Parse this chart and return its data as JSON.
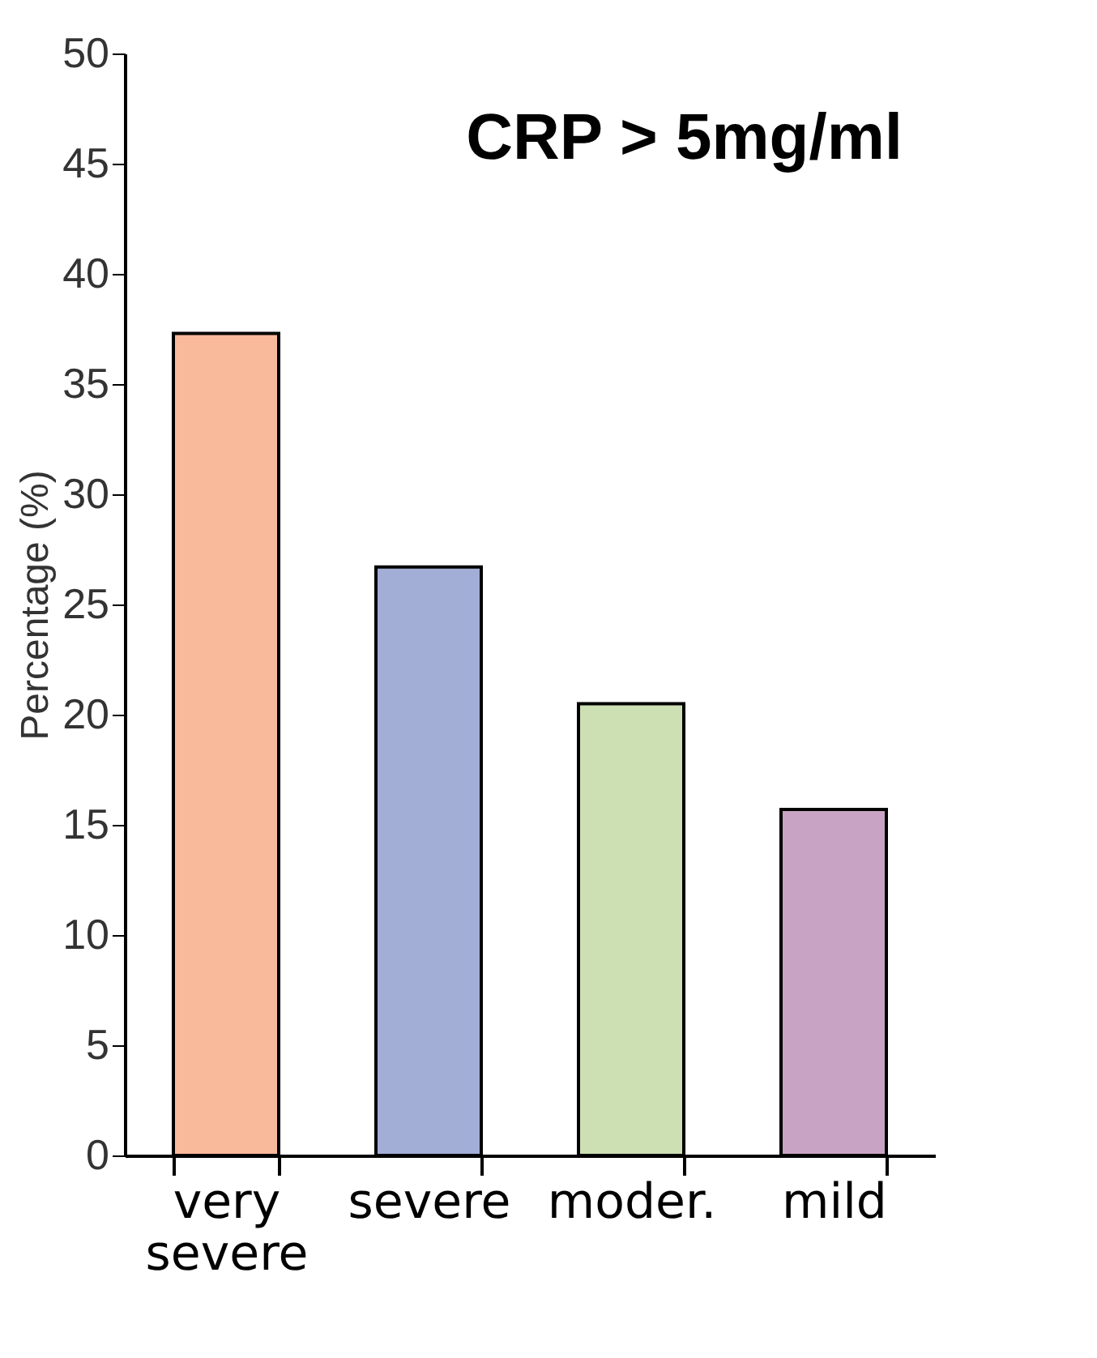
{
  "chart_data": {
    "type": "bar",
    "title": "CRP > 5mg/ml",
    "ylabel": "Percentage (%)",
    "categories": [
      "very severe",
      "severe",
      "moder.",
      "mild"
    ],
    "values": [
      37.3,
      26.7,
      20.5,
      15.7
    ],
    "colors": [
      "#f9b99b",
      "#a2aed6",
      "#cce0b4",
      "#c9a3c4"
    ],
    "ylim": [
      0,
      50
    ],
    "yticks": [
      0,
      5,
      10,
      15,
      20,
      25,
      30,
      35,
      40,
      45,
      50
    ],
    "grid": false
  }
}
